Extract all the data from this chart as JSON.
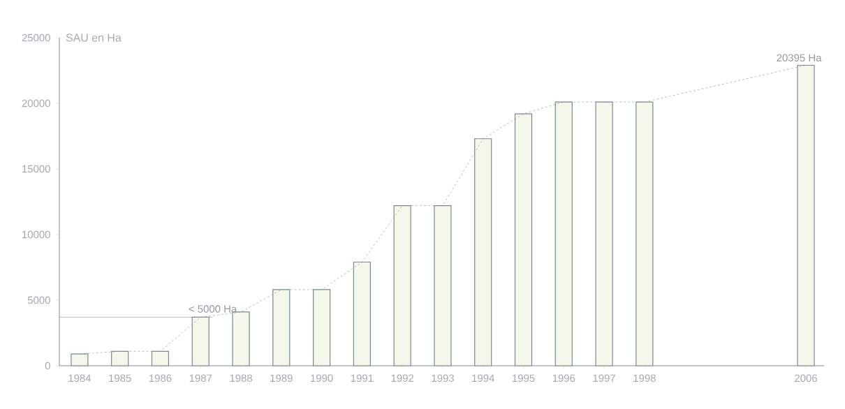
{
  "chart_data": {
    "type": "bar",
    "ylabel": "SAU en Ha",
    "categories": [
      "1984",
      "1985",
      "1986",
      "1987",
      "1988",
      "1989",
      "1990",
      "1991",
      "1992",
      "1993",
      "1994",
      "1995",
      "1996",
      "1997",
      "1998",
      null,
      null,
      null,
      "2006"
    ],
    "series": [
      {
        "color": "#f3f8ea",
        "values": [
          900,
          1100,
          1100,
          3700,
          4100,
          5800,
          5800,
          7900,
          12200,
          12200,
          17300,
          19200,
          20100,
          20100,
          20100,
          null,
          null,
          null,
          22900
        ]
      },
      {
        "type": "line",
        "color": "#8c9496",
        "values": [
          900,
          1100,
          1100,
          3700,
          4100,
          5800,
          5800,
          7900,
          12200,
          12200,
          17300,
          19200,
          20100,
          20100,
          20100,
          null,
          null,
          null,
          22900
        ]
      }
    ],
    "ylim": [
      0,
      25000
    ],
    "yticks": [
      0,
      5000,
      10000,
      15000,
      20000,
      25000
    ],
    "ref_lines": [
      {
        "axis": "y",
        "value": 3700,
        "label": "< 5000 Ha",
        "color": "#8c9496"
      }
    ],
    "annotations": [
      "20395 Ha"
    ],
    "marker": "none",
    "line_style": "dashed"
  }
}
